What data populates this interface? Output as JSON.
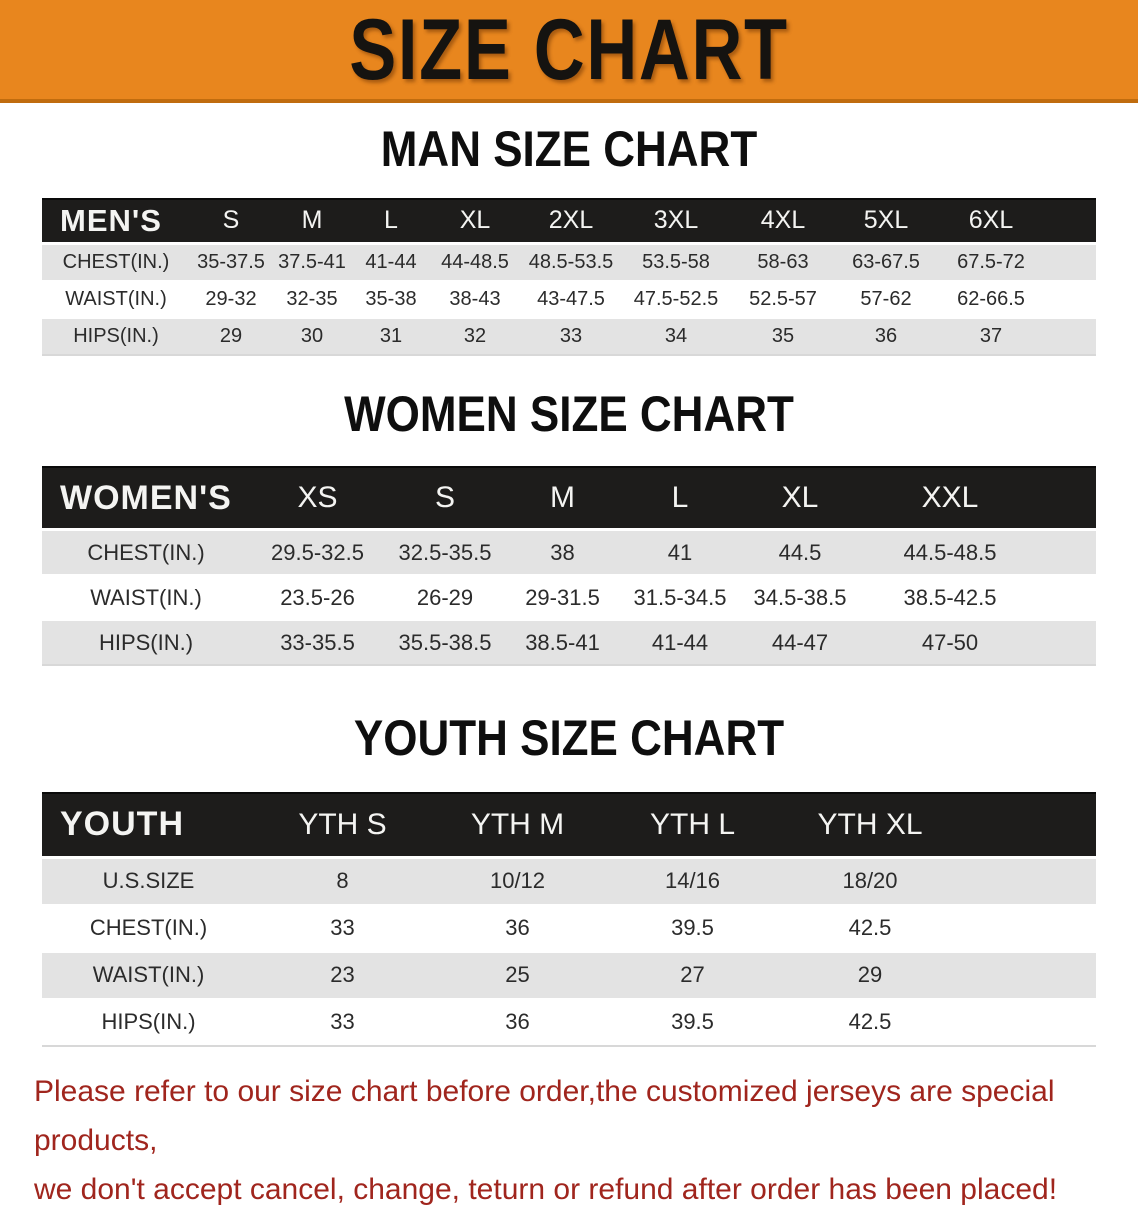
{
  "banner": {
    "title": "SIZE CHART"
  },
  "colors": {
    "banner_orange": "#e8861e",
    "banner_border": "#c06c0e",
    "table_header_black": "#1d1c1b",
    "row_gray": "#e3e3e3",
    "footer_red": "#a0251d"
  },
  "sections": [
    {
      "heading": "MAN SIZE CHART",
      "table": {
        "header": [
          "MEN'S",
          "S",
          "M",
          "L",
          "XL",
          "2XL",
          "3XL",
          "4XL",
          "5XL",
          "6XL"
        ],
        "rows": [
          {
            "label": "CHEST(IN.)",
            "values": [
              "35-37.5",
              "37.5-41",
              "41-44",
              "44-48.5",
              "48.5-53.5",
              "53.5-58",
              "58-63",
              "63-67.5",
              "67.5-72"
            ]
          },
          {
            "label": "WAIST(IN.)",
            "values": [
              "29-32",
              "32-35",
              "35-38",
              "38-43",
              "43-47.5",
              "47.5-52.5",
              "52.5-57",
              "57-62",
              "62-66.5"
            ]
          },
          {
            "label": "HIPS(IN.)",
            "values": [
              "29",
              "30",
              "31",
              "32",
              "33",
              "34",
              "35",
              "36",
              "37"
            ]
          }
        ]
      }
    },
    {
      "heading": "WOMEN SIZE CHART",
      "table": {
        "header": [
          "WOMEN'S",
          "XS",
          "S",
          "M",
          "L",
          "XL",
          "XXL"
        ],
        "rows": [
          {
            "label": "CHEST(IN.)",
            "values": [
              "29.5-32.5",
              "32.5-35.5",
              "38",
              "41",
              "44.5",
              "44.5-48.5"
            ]
          },
          {
            "label": "WAIST(IN.)",
            "values": [
              "23.5-26",
              "26-29",
              "29-31.5",
              "31.5-34.5",
              "34.5-38.5",
              "38.5-42.5"
            ]
          },
          {
            "label": "HIPS(IN.)",
            "values": [
              "33-35.5",
              "35.5-38.5",
              "38.5-41",
              "41-44",
              "44-47",
              "47-50"
            ]
          }
        ]
      }
    },
    {
      "heading": "YOUTH SIZE CHART",
      "table": {
        "header": [
          "YOUTH",
          "YTH S",
          "YTH M",
          "YTH L",
          "YTH XL"
        ],
        "rows": [
          {
            "label": "U.S.SIZE",
            "values": [
              "8",
              "10/12",
              "14/16",
              "18/20"
            ]
          },
          {
            "label": "CHEST(IN.)",
            "values": [
              "33",
              "36",
              "39.5",
              "42.5"
            ]
          },
          {
            "label": "WAIST(IN.)",
            "values": [
              "23",
              "25",
              "27",
              "29"
            ]
          },
          {
            "label": "HIPS(IN.)",
            "values": [
              "33",
              "36",
              "39.5",
              "42.5"
            ]
          }
        ]
      }
    }
  ],
  "footer": {
    "line1": "Please refer to our size chart before order,the customized jerseys are special products,",
    "line2": "we don't accept cancel, change, teturn or refund after order has been placed!"
  }
}
